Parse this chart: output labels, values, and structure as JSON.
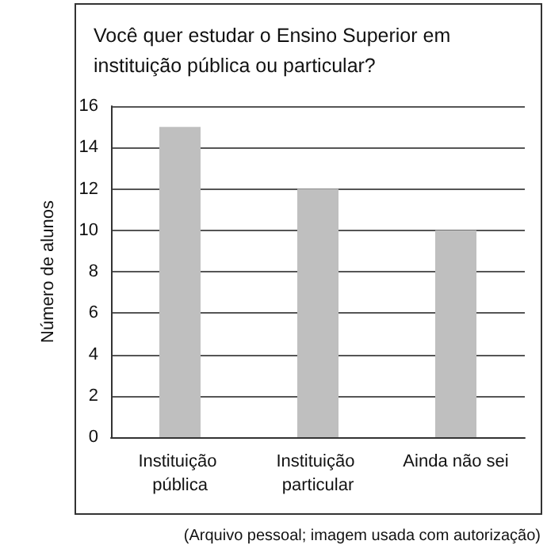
{
  "chart_data": {
    "type": "bar",
    "title": "Você quer estudar o Ensino Superior em instituição pública ou particular?",
    "ylabel": "Número de alunos",
    "categories": [
      "Instituição pública",
      "Instituição particular",
      "Ainda não sei"
    ],
    "values": [
      15,
      12,
      10
    ],
    "color": "#bfbfbf",
    "ylim": [
      0,
      16
    ],
    "yticks": [
      0,
      2,
      4,
      6,
      8,
      10,
      12,
      14,
      16
    ],
    "grid": "y",
    "annotations": [
      "(Arquivo pessoal; imagem usada com autorização)"
    ]
  }
}
